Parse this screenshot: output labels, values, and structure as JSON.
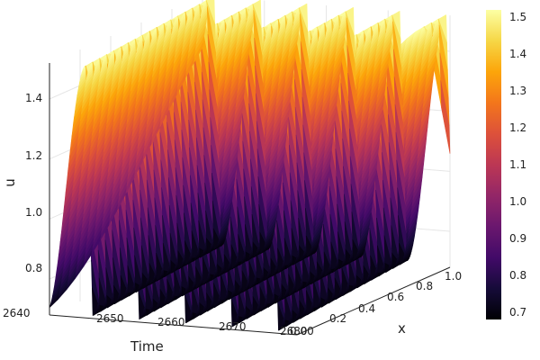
{
  "chart_data": {
    "type": "surface",
    "title": "",
    "xlabel": "Time",
    "ylabel": "x",
    "zlabel": "u",
    "time_range": [
      2640,
      2680
    ],
    "x_range": [
      0,
      1
    ],
    "u_range": [
      0.68,
      1.52
    ],
    "time_ticks": [
      "2640",
      "2650",
      "2660",
      "2670",
      "2680"
    ],
    "x_ticks": [
      "0.00",
      "0.2",
      "0.4",
      "0.6",
      "0.8",
      "1.0"
    ],
    "u_ticks": [
      "0.8",
      "1.0",
      "1.2",
      "1.4"
    ],
    "u_tick_values": [
      0.8,
      1.0,
      1.2,
      1.4
    ],
    "colorbar": {
      "colormap": "inferno",
      "range": [
        0.68,
        1.52
      ],
      "ticks": [
        "0.7",
        "0.8",
        "0.9",
        "1.0",
        "1.1",
        "1.2",
        "1.3",
        "1.4",
        "1.5"
      ],
      "tick_values": [
        0.7,
        0.8,
        0.9,
        1.0,
        1.1,
        1.2,
        1.3,
        1.4,
        1.5
      ]
    },
    "wave": {
      "period": 7.5,
      "min": 0.69,
      "max": 1.52,
      "ridge_count": 6
    },
    "grid": true
  }
}
